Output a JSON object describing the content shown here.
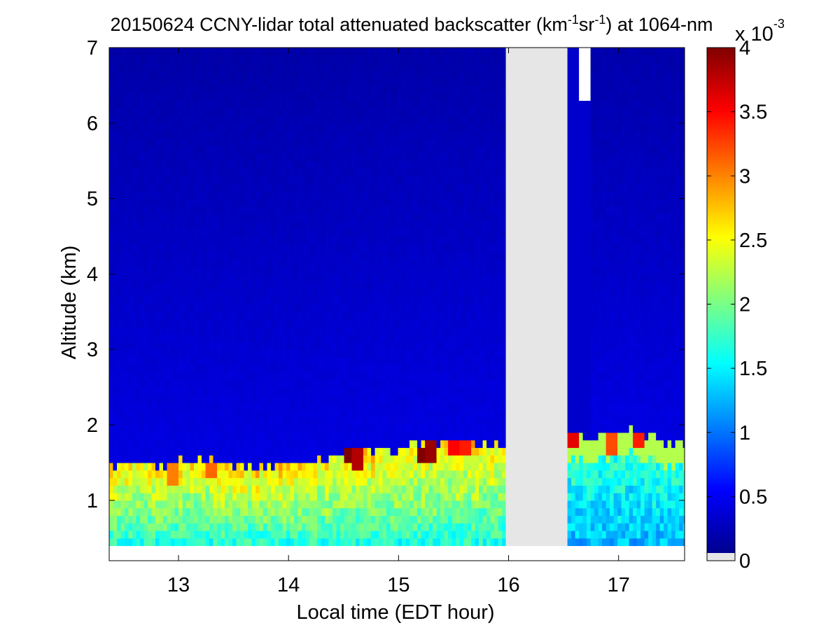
{
  "chart_data": {
    "type": "heatmap",
    "title": {
      "prefix": "20150624 CCNY-lidar total attenuated backscatter (km",
      "sup1": "-1",
      "mid": "sr",
      "sup2": "-1",
      "suffix": ") at 1064-nm"
    },
    "xlabel": "Local time (EDT hour)",
    "ylabel": "Altitude (km)",
    "xlim": [
      12.37,
      17.6
    ],
    "ylim": [
      0.2,
      7
    ],
    "x_ticks": [
      13,
      14,
      15,
      16,
      17
    ],
    "y_ticks": [
      1,
      2,
      3,
      4,
      5,
      6,
      7
    ],
    "data_altitude_range": [
      0.4,
      7
    ],
    "colormap": "jet",
    "colorbar": {
      "range": [
        0,
        4
      ],
      "ticks": [
        "0",
        "0.5",
        "1",
        "1.5",
        "2",
        "2.5",
        "3",
        "3.5",
        "4"
      ],
      "multiplier": {
        "base": "x 10",
        "exponent": "-3"
      },
      "no_data_color": "#e6e6e6"
    },
    "no_data_intervals": [
      [
        15.99,
        16.53
      ]
    ],
    "upper_gap_intervals": [
      [
        16.63,
        16.76
      ]
    ],
    "boundary_layer": {
      "times": [
        12.37,
        12.7,
        13.0,
        13.3,
        13.6,
        13.9,
        14.2,
        14.5,
        14.8,
        15.1,
        15.4,
        15.7,
        15.99,
        16.53,
        16.8,
        17.1,
        17.4,
        17.6
      ],
      "top_km": [
        1.5,
        1.47,
        1.5,
        1.55,
        1.45,
        1.47,
        1.52,
        1.62,
        1.65,
        1.7,
        1.73,
        1.72,
        1.7,
        1.85,
        1.8,
        1.92,
        1.8,
        1.75
      ]
    },
    "hot_spots": [
      {
        "time": 14.55,
        "alt": 1.62,
        "value": 4.0
      },
      {
        "time": 14.62,
        "alt": 1.58,
        "value": 3.8
      },
      {
        "time": 15.22,
        "alt": 1.62,
        "value": 4.0
      },
      {
        "time": 15.3,
        "alt": 1.65,
        "value": 3.9
      },
      {
        "time": 15.5,
        "alt": 1.72,
        "value": 3.5
      },
      {
        "time": 15.6,
        "alt": 1.72,
        "value": 3.4
      },
      {
        "time": 16.6,
        "alt": 1.82,
        "value": 3.6
      },
      {
        "time": 16.93,
        "alt": 1.78,
        "value": 3.2
      },
      {
        "time": 17.18,
        "alt": 1.8,
        "value": 3.4
      },
      {
        "time": 13.3,
        "alt": 1.42,
        "value": 3.1
      },
      {
        "time": 12.95,
        "alt": 1.38,
        "value": 3.0
      }
    ]
  }
}
